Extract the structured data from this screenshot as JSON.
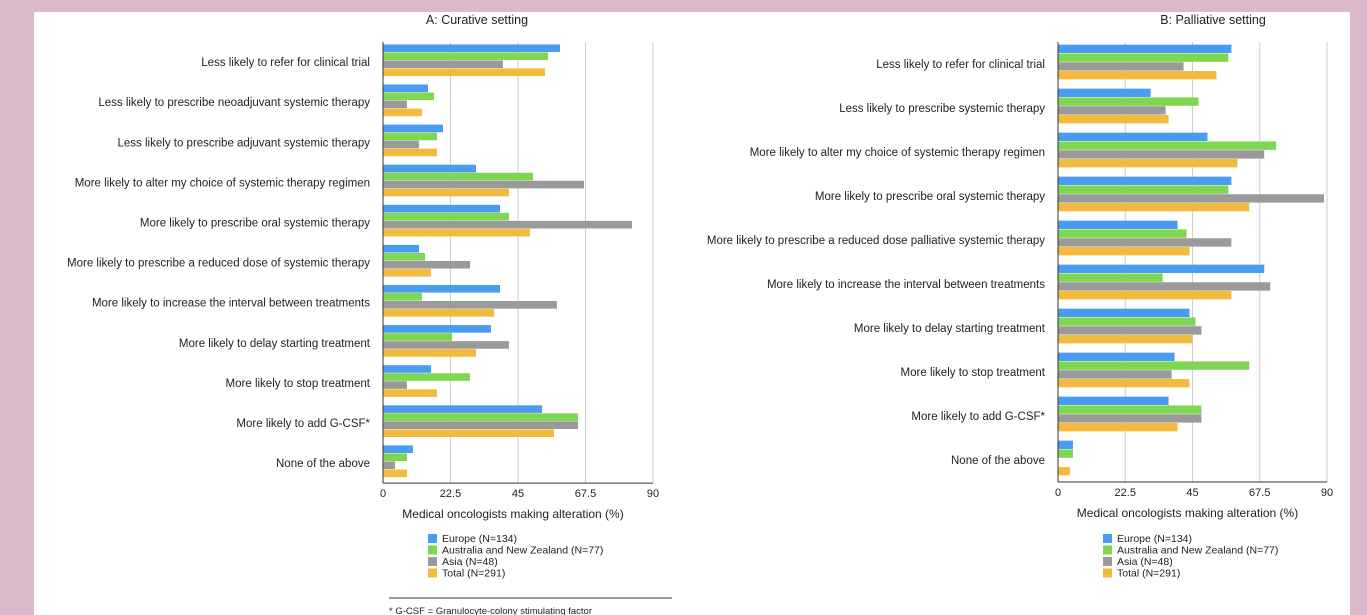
{
  "colors": {
    "page_background": "#dbb9c8",
    "panel_background": "#ffffff",
    "series": [
      "#4a9cf0",
      "#7ed653",
      "#9a9a9a",
      "#f2bb3f"
    ],
    "grid": "#cccccc"
  },
  "footnote": "* G-CSF = Granulocyte-colony stimulating factor",
  "chart_data": [
    {
      "type": "bar",
      "orientation": "horizontal",
      "title": "A: Curative setting",
      "xlabel": "Medical oncologists making alteration  (%)",
      "xlim": [
        0,
        90
      ],
      "xticks": [
        "0",
        "22.5",
        "45",
        "67.5",
        "90"
      ],
      "grid": true,
      "legend_position": "bottom",
      "categories": [
        "Less likely to refer for clinical trial",
        "Less likely to prescribe neoadjuvant systemic therapy",
        "Less likely to prescribe adjuvant systemic therapy",
        "More likely to alter my choice of systemic therapy regimen",
        "More likely to prescribe oral systemic therapy",
        "More likely to prescribe a reduced dose of systemic therapy",
        "More likely to increase the interval between treatments",
        "More likely to delay starting treatment",
        "More likely to stop treatment",
        "More likely to add G-CSF*",
        "None of the above"
      ],
      "series": [
        {
          "name": "Europe (N=134)",
          "values": [
            59,
            15,
            20,
            31,
            39,
            12,
            39,
            36,
            16,
            53,
            10
          ]
        },
        {
          "name": "Australia and New Zealand (N=77)",
          "values": [
            55,
            17,
            18,
            50,
            42,
            14,
            13,
            23,
            29,
            65,
            8
          ]
        },
        {
          "name": "Asia (N=48)",
          "values": [
            40,
            8,
            12,
            67,
            83,
            29,
            58,
            42,
            8,
            65,
            4
          ]
        },
        {
          "name": "Total (N=291)",
          "values": [
            54,
            13,
            18,
            42,
            49,
            16,
            37,
            31,
            18,
            57,
            8
          ]
        }
      ]
    },
    {
      "type": "bar",
      "orientation": "horizontal",
      "title": "B: Palliative setting",
      "xlabel": "Medical oncologists making alteration  (%)",
      "xlim": [
        0,
        90
      ],
      "xticks": [
        "0",
        "22.5",
        "45",
        "67.5",
        "90"
      ],
      "grid": true,
      "legend_position": "bottom",
      "categories": [
        "Less likely to refer for clinical trial",
        "Less likely to prescribe systemic therapy",
        "More likely to alter my choice of systemic therapy regimen",
        "More likely to prescribe oral systemic therapy",
        "More likely to prescribe a reduced dose palliative systemic therapy",
        "More likely to increase the interval between treatments",
        "More likely to delay starting treatment",
        "More likely to stop treatment",
        "More likely to add G-CSF*",
        "None of the above"
      ],
      "series": [
        {
          "name": "Europe (N=134)",
          "values": [
            58,
            31,
            50,
            58,
            40,
            69,
            44,
            39,
            37,
            5
          ]
        },
        {
          "name": "Australia and New Zealand (N=77)",
          "values": [
            57,
            47,
            73,
            57,
            43,
            35,
            46,
            64,
            48,
            5
          ]
        },
        {
          "name": "Asia (N=48)",
          "values": [
            42,
            36,
            69,
            89,
            58,
            71,
            48,
            38,
            48,
            0
          ]
        },
        {
          "name": "Total (N=291)",
          "values": [
            53,
            37,
            60,
            64,
            44,
            58,
            45,
            44,
            40,
            4
          ]
        }
      ]
    }
  ]
}
